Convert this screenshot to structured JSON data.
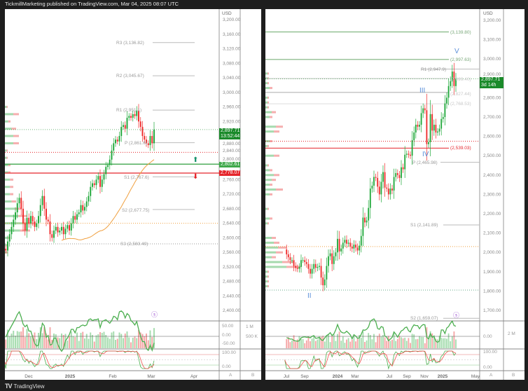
{
  "header": {
    "title": "TickmillMarketing published on TradingView.com, Mar 04, 2025 08:07 UTC"
  },
  "footer": {
    "brand": "TradingView"
  },
  "colors": {
    "up": "#1fa83a",
    "down": "#ef2b2b",
    "ma": "#f0a040",
    "pivot": "#b0b0b0",
    "green_level": "#2e9e3e",
    "red_level": "#e5252b",
    "wave": "#5b8fd9"
  },
  "left": {
    "currency": "USD",
    "price_tag": "2,897.71",
    "countdown": "13:52:44",
    "level_green": "2,802.61",
    "level_red": "2,778.07",
    "pivots": {
      "r3": "R3 (3,136.82)",
      "r2": "R2 (3,045.67)",
      "r1": "R1 (2,951.1)",
      "p": "P (2,861.6)",
      "s1": "S1 (2,767.6)",
      "s2": "S2 (2,677.75)",
      "s3": "S3 (2,583.49)"
    },
    "vol_axis": [
      "50.00",
      "0.00",
      "-50.00"
    ],
    "vol_axis2": [
      "1 M",
      "500 K"
    ],
    "osc_axis": [
      "100.00",
      "0.00"
    ],
    "axis_cols": [
      "A",
      "B"
    ]
  },
  "right": {
    "currency": "USD",
    "price_tag": "2,897.71",
    "countdown": "3d 14h",
    "levels": {
      "l3139": "(3,139.80)",
      "l2997": "(2,997.63)",
      "r1": "R1 (2,947.9)",
      "l2899": "(2,899.40)",
      "l2827": "(2,827.44)",
      "l2768": "(2,768.53)",
      "l2539": "(2,539.03)",
      "p": "P (2,465.98)",
      "s1": "S1 (2,141.89)",
      "s2": "S2 (1,659.07)"
    },
    "waves": {
      "ii": "II",
      "iii": "III",
      "iv": "IV",
      "v": "V"
    },
    "vol_axis": [
      "0.00"
    ],
    "vol_axis2": [
      "2 M"
    ],
    "osc_axis": [
      "100.00",
      "0.00"
    ],
    "axis_cols": [
      "A",
      "B"
    ]
  },
  "chart_data": [
    {
      "type": "candlestick",
      "title": "Left (daily)",
      "ylabel": "USD",
      "ylim": [
        2380,
        3210
      ],
      "yticks": [
        "3,200.00",
        "3,160.00",
        "3,120.00",
        "3,080.00",
        "3,040.00",
        "3,000.00",
        "2,960.00",
        "2,920.00",
        "2,880.00",
        "2,840.00",
        "2,800.00",
        "2,760.00",
        "2,720.00",
        "2,680.00",
        "2,640.00",
        "2,600.00",
        "2,560.00",
        "2,520.00",
        "2,480.00",
        "2,440.00",
        "2,400.00"
      ],
      "xticks": [
        "Dec",
        "2025",
        "Feb",
        "Mar",
        "Apr"
      ],
      "close": [
        2570,
        2565,
        2590,
        2610,
        2630,
        2650,
        2670,
        2695,
        2710,
        2680,
        2640,
        2620,
        2655,
        2640,
        2660,
        2645,
        2630,
        2640,
        2660,
        2690,
        2715,
        2680,
        2650,
        2645,
        2610,
        2600,
        2620,
        2630,
        2615,
        2620,
        2630,
        2610,
        2625,
        2635,
        2620,
        2640,
        2660,
        2650,
        2665,
        2670,
        2690,
        2675,
        2685,
        2700,
        2715,
        2740,
        2750,
        2745,
        2760,
        2770,
        2740,
        2760,
        2775,
        2795,
        2800,
        2815,
        2840,
        2860,
        2870,
        2865,
        2880,
        2905,
        2910,
        2900,
        2930,
        2935,
        2930,
        2940,
        2935,
        2950,
        2920,
        2905,
        2880,
        2870,
        2860,
        2855,
        2880,
        2860,
        2897.71
      ]
    },
    {
      "type": "candlestick",
      "title": "Right (weekly)",
      "ylabel": "USD",
      "ylim": [
        1650,
        3210
      ],
      "yticks": [
        "3,200.00",
        "3,100.00",
        "3,000.00",
        "2,900.00",
        "2,800.00",
        "2,700.00",
        "2,600.00",
        "2,500.00",
        "2,400.00",
        "2,300.00",
        "2,200.00",
        "2,100.00",
        "2,000.00",
        "1,900.00",
        "1,800.00",
        "1,700.00"
      ],
      "xticks": [
        "Jul",
        "Sep",
        "2024",
        "Mar",
        "Jul",
        "Sep",
        "Nov",
        "2025",
        "May"
      ],
      "close": [
        2015,
        1990,
        1975,
        1960,
        1960,
        1930,
        1920,
        1915,
        1925,
        1960,
        1960,
        1950,
        1940,
        1915,
        1890,
        1915,
        1940,
        1920,
        1925,
        1930,
        1870,
        1830,
        1860,
        1930,
        1980,
        1995,
        1940,
        1980,
        2000,
        2070,
        2005,
        2020,
        2050,
        2065,
        2045,
        2050,
        2030,
        2020,
        2040,
        2025,
        2010,
        2035,
        2085,
        2180,
        2155,
        2165,
        2230,
        2330,
        2345,
        2390,
        2385,
        2340,
        2300,
        2365,
        2415,
        2335,
        2330,
        2300,
        2330,
        2320,
        2390,
        2410,
        2400,
        2385,
        2440,
        2430,
        2505,
        2510,
        2505,
        2500,
        2580,
        2620,
        2660,
        2650,
        2660,
        2720,
        2745,
        2735,
        2560,
        2570,
        2715,
        2630,
        2660,
        2620,
        2625,
        2640,
        2690,
        2700,
        2770,
        2800,
        2860,
        2885,
        2935,
        2860,
        2897.71
      ]
    }
  ]
}
